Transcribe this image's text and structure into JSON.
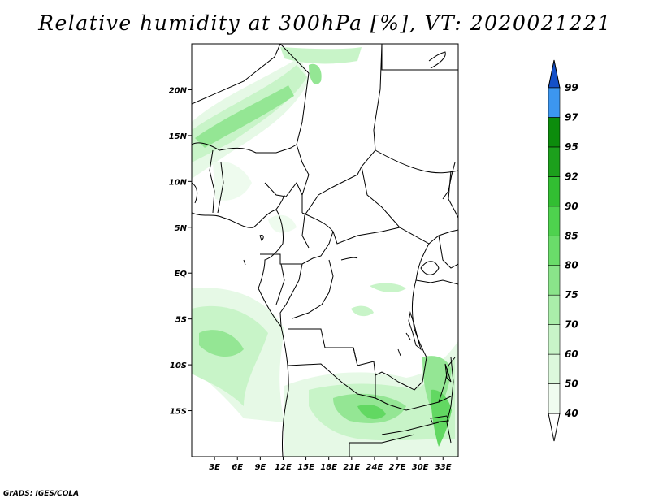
{
  "title": "Relative humidity at 300hPa [%], VT: 2020021221",
  "credit": "GrADS: IGES/COLA",
  "map": {
    "projection": "lat-lon",
    "lon_range": [
      0,
      35
    ],
    "lat_range": [
      -20,
      25
    ],
    "lat_ticks": [
      {
        "value": 20,
        "label": "20N"
      },
      {
        "value": 15,
        "label": "15N"
      },
      {
        "value": 10,
        "label": "10N"
      },
      {
        "value": 5,
        "label": "5N"
      },
      {
        "value": 0,
        "label": "EQ"
      },
      {
        "value": -5,
        "label": "5S"
      },
      {
        "value": -10,
        "label": "10S"
      },
      {
        "value": -15,
        "label": "15S"
      }
    ],
    "lon_ticks": [
      {
        "value": 3,
        "label": "3E"
      },
      {
        "value": 6,
        "label": "6E"
      },
      {
        "value": 9,
        "label": "9E"
      },
      {
        "value": 12,
        "label": "12E"
      },
      {
        "value": 15,
        "label": "15E"
      },
      {
        "value": 18,
        "label": "18E"
      },
      {
        "value": 21,
        "label": "21E"
      },
      {
        "value": 24,
        "label": "24E"
      },
      {
        "value": 27,
        "label": "27E"
      },
      {
        "value": 30,
        "label": "30E"
      },
      {
        "value": 33,
        "label": "33E"
      }
    ]
  },
  "colorbar": {
    "levels": [
      {
        "label": "40",
        "color": "#f0fcf0"
      },
      {
        "label": "50",
        "color": "#dcf8dc"
      },
      {
        "label": "60",
        "color": "#c8f4c8"
      },
      {
        "label": "70",
        "color": "#aaeeaa"
      },
      {
        "label": "75",
        "color": "#8ae48a"
      },
      {
        "label": "80",
        "color": "#6adc6a"
      },
      {
        "label": "85",
        "color": "#4ed24e"
      },
      {
        "label": "90",
        "color": "#32be32"
      },
      {
        "label": "92",
        "color": "#1ca01c"
      },
      {
        "label": "95",
        "color": "#0c8c0c"
      },
      {
        "label": "97",
        "color": "#3c96f0"
      },
      {
        "label": "99",
        "color": "#1e6ee6"
      }
    ],
    "under_color": "#ffffff",
    "over_color": "#1450c8"
  }
}
